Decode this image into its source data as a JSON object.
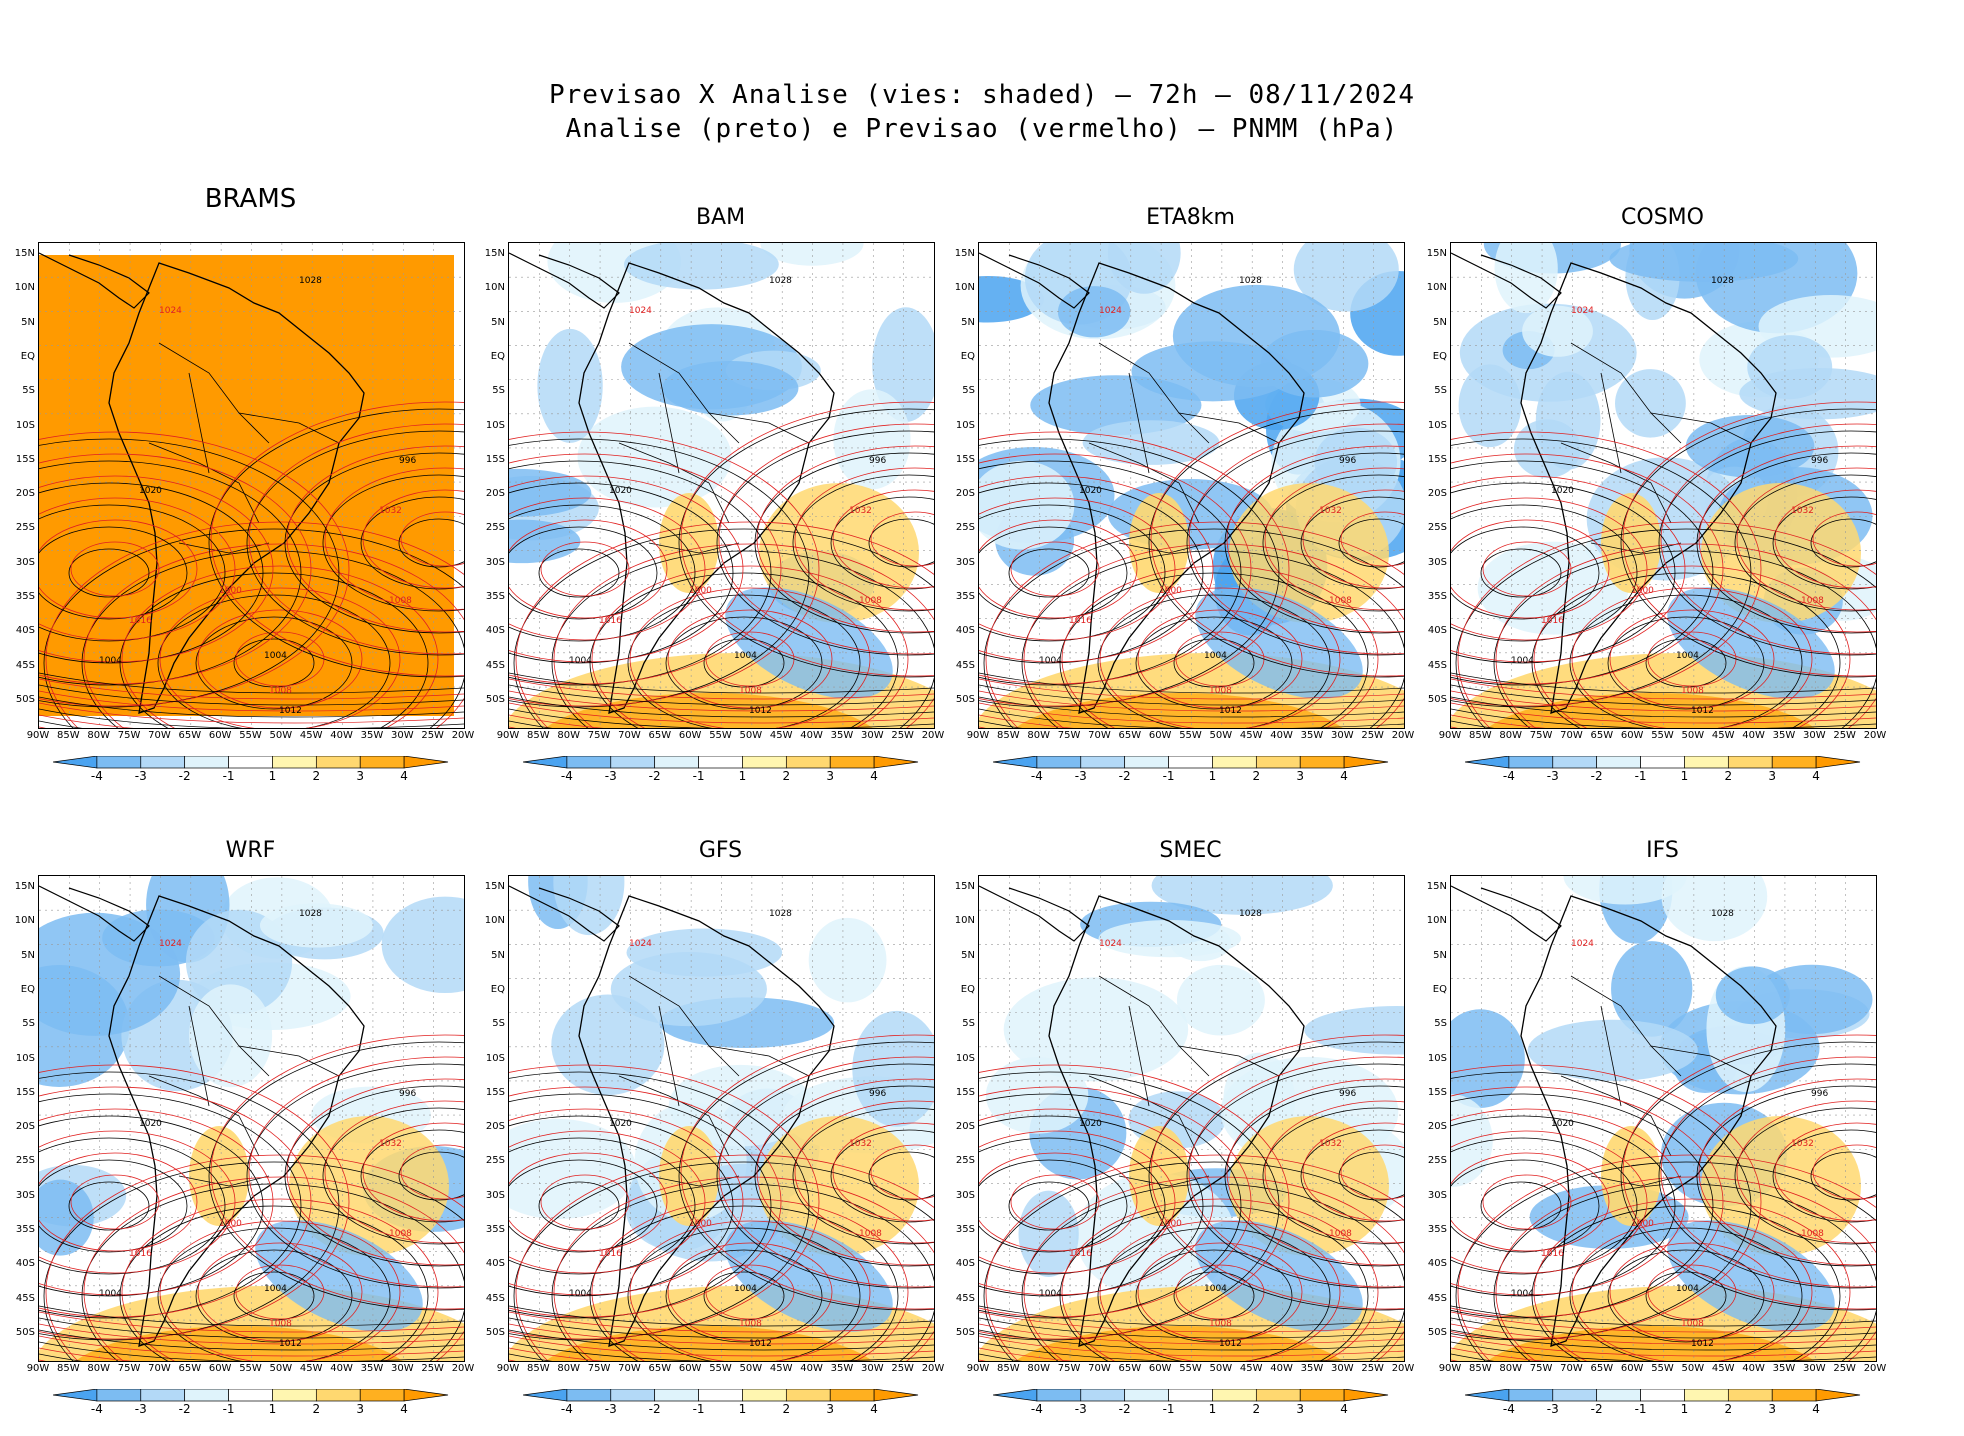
{
  "title_line1": "Previsao X Analise (vies: shaded) – 72h – 08/11/2024",
  "title_line2": "Analise (preto) e Previsao (vermelho) – PNMM (hPa)",
  "lat_labels": [
    "15N",
    "10N",
    "5N",
    "EQ",
    "5S",
    "10S",
    "15S",
    "20S",
    "25S",
    "30S",
    "35S",
    "40S",
    "45S",
    "50S"
  ],
  "lon_labels": [
    "90W",
    "85W",
    "80W",
    "75W",
    "70W",
    "65W",
    "60W",
    "55W",
    "50W",
    "45W",
    "40W",
    "35W",
    "30W",
    "25W",
    "20W"
  ],
  "colorbar": {
    "labels": [
      "-4",
      "-3",
      "-2",
      "-1",
      "1",
      "2",
      "3",
      "4"
    ],
    "colors": [
      "#4aa3f0",
      "#7cbcf2",
      "#b3d9f7",
      "#dff3fb",
      "#ffffff",
      "#fff6b0",
      "#ffd870",
      "#ffb020",
      "#ff9a00"
    ]
  },
  "colors": {
    "analysis": "#000000",
    "forecast": "#e02020"
  },
  "panels": [
    {
      "name": "BRAMS"
    },
    {
      "name": "BAM"
    },
    {
      "name": "ETA8km"
    },
    {
      "name": "COSMO"
    },
    {
      "name": "WRF"
    },
    {
      "name": "GFS"
    },
    {
      "name": "SMEC"
    },
    {
      "name": "IFS"
    }
  ],
  "isobar_labels": [
    "996",
    "1000",
    "1004",
    "1008",
    "1012",
    "1016",
    "1020",
    "1024",
    "1028",
    "1032"
  ]
}
